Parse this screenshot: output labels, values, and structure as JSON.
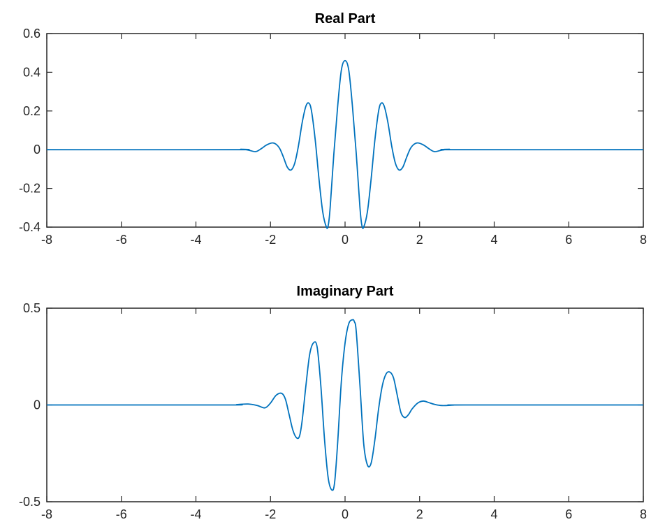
{
  "chart_data": [
    {
      "type": "line",
      "title": "Real Part",
      "xlabel": "",
      "ylabel": "",
      "xlim": [
        -8,
        8
      ],
      "ylim": [
        -0.4,
        0.6
      ],
      "xticks": [
        "-8",
        "-6",
        "-4",
        "-2",
        "0",
        "2",
        "4",
        "6",
        "8"
      ],
      "yticks": [
        "-0.4",
        "-0.2",
        "0",
        "0.2",
        "0.4",
        "0.6"
      ],
      "grid": false,
      "line_color": "#0072BD",
      "series": [
        {
          "x": [
            -8,
            -3,
            -2.8,
            -2.6,
            -2.4,
            -2.25,
            -2.1,
            -1.95,
            -1.85,
            -1.75,
            -1.65,
            -1.55,
            -1.45,
            -1.35,
            -1.25,
            -1.15,
            -1.05,
            -0.97,
            -0.9,
            -0.8,
            -0.7,
            -0.6,
            -0.5,
            -0.45,
            -0.4,
            -0.3,
            -0.2,
            -0.1,
            0,
            0.1,
            0.2,
            0.3,
            0.4,
            0.45,
            0.5,
            0.6,
            0.7,
            0.8,
            0.9,
            0.97,
            1.05,
            1.15,
            1.25,
            1.35,
            1.45,
            1.55,
            1.65,
            1.75,
            1.85,
            1.95,
            2.1,
            2.25,
            2.4,
            2.6,
            2.8,
            3,
            8
          ],
          "y": [
            0,
            0,
            0.002,
            -0.002,
            -0.01,
            0.005,
            0.025,
            0.035,
            0.028,
            0.005,
            -0.04,
            -0.09,
            -0.105,
            -0.07,
            0.02,
            0.14,
            0.225,
            0.24,
            0.2,
            0.05,
            -0.15,
            -0.32,
            -0.4,
            -0.39,
            -0.3,
            -0.02,
            0.22,
            0.41,
            0.46,
            0.41,
            0.22,
            -0.02,
            -0.3,
            -0.39,
            -0.4,
            -0.32,
            -0.15,
            0.05,
            0.2,
            0.24,
            0.225,
            0.14,
            0.02,
            -0.07,
            -0.105,
            -0.09,
            -0.04,
            0.005,
            0.028,
            0.035,
            0.025,
            0.005,
            -0.01,
            -0.002,
            0.002,
            0,
            0
          ]
        }
      ]
    },
    {
      "type": "line",
      "title": "Imaginary Part",
      "xlabel": "",
      "ylabel": "",
      "xlim": [
        -8,
        8
      ],
      "ylim": [
        -0.5,
        0.5
      ],
      "xticks": [
        "-8",
        "-6",
        "-4",
        "-2",
        "0",
        "2",
        "4",
        "6",
        "8"
      ],
      "yticks": [
        "-0.5",
        "0",
        "0.5"
      ],
      "grid": false,
      "line_color": "#0072BD",
      "series": [
        {
          "x": [
            -8,
            -3.2,
            -2.9,
            -2.6,
            -2.35,
            -2.15,
            -2.0,
            -1.85,
            -1.7,
            -1.6,
            -1.5,
            -1.4,
            -1.3,
            -1.22,
            -1.15,
            -1.05,
            -0.95,
            -0.85,
            -0.75,
            -0.65,
            -0.55,
            -0.45,
            -0.35,
            -0.28,
            -0.2,
            -0.1,
            0,
            0.1,
            0.2,
            0.25,
            0.3,
            0.4,
            0.5,
            0.6,
            0.7,
            0.8,
            0.9,
            1.0,
            1.1,
            1.2,
            1.3,
            1.4,
            1.5,
            1.6,
            1.7,
            1.8,
            1.95,
            2.1,
            2.25,
            2.4,
            2.6,
            2.9,
            3.2,
            8
          ],
          "y": [
            0,
            0,
            0.002,
            0.005,
            -0.003,
            -0.015,
            0.01,
            0.05,
            0.06,
            0.03,
            -0.05,
            -0.13,
            -0.17,
            -0.16,
            -0.08,
            0.1,
            0.26,
            0.32,
            0.3,
            0.1,
            -0.18,
            -0.38,
            -0.44,
            -0.4,
            -0.2,
            0.12,
            0.32,
            0.42,
            0.44,
            0.43,
            0.38,
            0.1,
            -0.2,
            -0.31,
            -0.3,
            -0.18,
            -0.02,
            0.1,
            0.16,
            0.17,
            0.14,
            0.05,
            -0.04,
            -0.065,
            -0.05,
            -0.02,
            0.01,
            0.02,
            0.012,
            0.003,
            -0.003,
            -0.001,
            0,
            0
          ]
        }
      ]
    }
  ]
}
